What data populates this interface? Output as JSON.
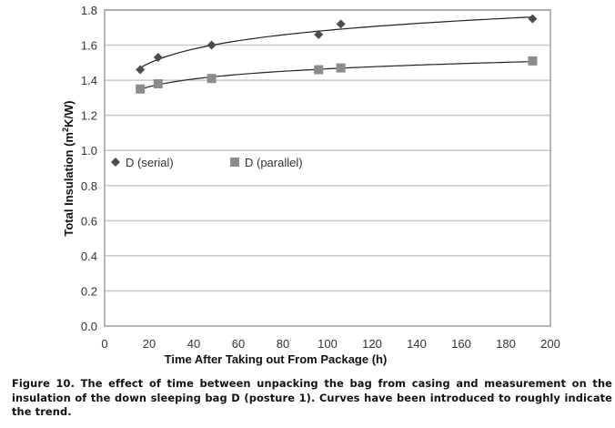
{
  "chart_data": {
    "type": "scatter",
    "title": "",
    "xlabel": "Time After Taking out From Package (h)",
    "ylabel_main": "Total Insulation (m",
    "ylabel_sup": "2",
    "ylabel_tail": "K/W)",
    "xlim": [
      0,
      200
    ],
    "ylim": [
      0.0,
      1.8
    ],
    "xticks": [
      0,
      20,
      40,
      60,
      80,
      100,
      120,
      140,
      160,
      180,
      200
    ],
    "yticks": [
      0.0,
      0.2,
      0.4,
      0.6,
      0.8,
      1.0,
      1.2,
      1.4,
      1.6,
      1.8
    ],
    "ytick_labels": [
      "0.0",
      "0.2",
      "0.4",
      "0.6",
      "0.8",
      "1.0",
      "1.2",
      "1.4",
      "1.6",
      "1.8"
    ],
    "grid": "horizontal",
    "legend_position": "inside-middle-left",
    "trendlines": "logarithmic fit curves per series",
    "series": [
      {
        "name": "D (serial)",
        "marker": "diamond",
        "color": "#4d4d4d",
        "x": [
          16,
          24,
          48,
          96,
          106,
          192
        ],
        "y": [
          1.46,
          1.53,
          1.6,
          1.66,
          1.72,
          1.75
        ]
      },
      {
        "name": "D (parallel)",
        "marker": "square",
        "color": "#8c8c8c",
        "x": [
          16,
          24,
          48,
          96,
          106,
          192
        ],
        "y": [
          1.35,
          1.38,
          1.41,
          1.46,
          1.47,
          1.51
        ]
      }
    ]
  },
  "caption": "Figure 10. The effect of time between unpacking the bag from casing and measurement on the insulation of the down sleeping bag D (posture 1). Curves have been introduced to roughly indicate the trend.",
  "colors": {
    "grid": "#c8c8c8",
    "frame": "#8a8a8a",
    "trend": "#222222"
  }
}
